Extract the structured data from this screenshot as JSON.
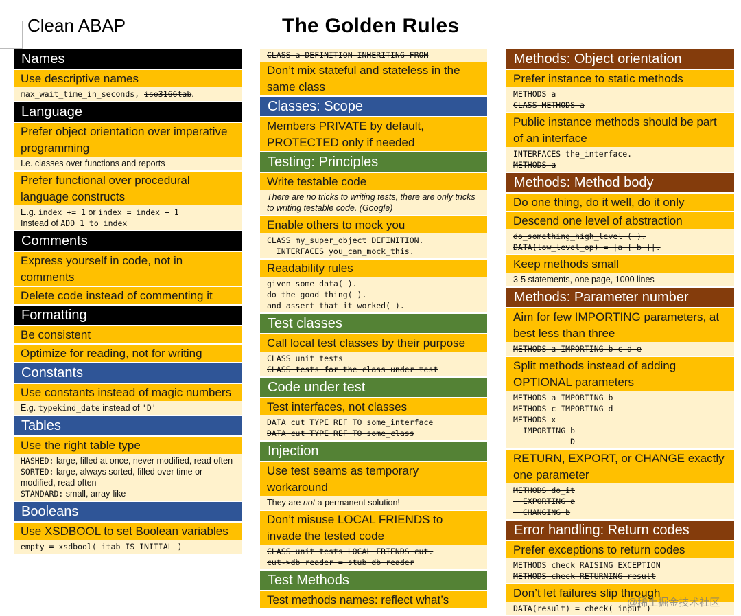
{
  "header": {
    "app_title": "Clean ABAP",
    "main_title": "The Golden Rules"
  },
  "col1": {
    "names": {
      "header": "Names",
      "r1_title": "Use descriptive names",
      "r1_code_a": "max_wait_time_in_seconds, ",
      "r1_code_b": "iso3166tab",
      "r1_code_c": "."
    },
    "language": {
      "header": "Language",
      "r1_title": "Prefer object orientation over imperative programming",
      "r1_detail": "I.e. classes over functions and reports",
      "r2_title": "Prefer functional over procedural language constructs",
      "r2_l1_a": "E.g. ",
      "r2_l1_b": "index += 1",
      "r2_l1_c": " or ",
      "r2_l1_d": "index = index + 1",
      "r2_l2_a": "Instead of ",
      "r2_l2_b": "ADD 1 to index"
    },
    "comments": {
      "header": "Comments",
      "r1_title": "Express yourself in code, not in comments",
      "r2_title": "Delete code instead of commenting it"
    },
    "formatting": {
      "header": "Formatting",
      "r1_title": "Be consistent",
      "r2_title": "Optimize for reading, not for writing"
    },
    "constants": {
      "header": "Constants",
      "r1_title": "Use constants instead of magic numbers",
      "r1_a": "E.g. ",
      "r1_b": "typekind_date",
      "r1_c": " instead of ",
      "r1_d": "'D'"
    },
    "tables": {
      "header": "Tables",
      "r1_title": "Use the right table type",
      "hashed_kw": "HASHED:",
      "hashed_text": " large, filled at once, never modified, read often",
      "sorted_kw": "SORTED:",
      "sorted_text": " large, always sorted, filled over time or modified, read often",
      "standard_kw": "STANDARD:",
      "standard_text": " small, array-like"
    },
    "booleans": {
      "header": "Booleans",
      "r1_title": "Use XSDBOOL to set Boolean variables",
      "r1_code": "empty = xsdbool( itab IS INITIAL )"
    }
  },
  "col2": {
    "top_code": "CLASS a DEFINITION INHERITING FROM",
    "top_rule": "Don’t mix stateful and stateless in the same class",
    "scope": {
      "header": "Classes: Scope",
      "r1_title": "Members PRIVATE by default, PROTECTED only if needed"
    },
    "testing": {
      "header": "Testing: Principles",
      "r1_title": "Write testable code",
      "r1_detail": "There are no tricks to writing tests, there are only tricks to writing testable code. (Google)",
      "r2_title": "Enable others to mock you",
      "r2_code_1": "CLASS my_super_object DEFINITION.",
      "r2_code_2": "  INTERFACES you_can_mock_this.",
      "r3_title": "Readability rules",
      "r3_code_1": "given_some_data( ).",
      "r3_code_2": "do_the_good_thing( ).",
      "r3_code_3": "and_assert_that_it_worked( )."
    },
    "test_classes": {
      "header": "Test classes",
      "r1_title": "Call local test classes by their purpose",
      "r1_code_1": "CLASS unit_tests",
      "r1_code_2": "CLASS tests_for_the_class_under_test"
    },
    "code_under_test": {
      "header": "Code under test",
      "r1_title": "Test interfaces, not classes",
      "r1_code_1": "DATA cut TYPE REF TO some_interface",
      "r1_code_2": "DATA cut TYPE REF TO some_class"
    },
    "injection": {
      "header": "Injection",
      "r1_title": "Use test seams as temporary workaround",
      "r1_a": "They are ",
      "r1_b": "not",
      "r1_c": " a permanent solution!",
      "r2_title": "Don’t misuse LOCAL FRIENDS to invade the tested code",
      "r2_code_1": "CLASS unit_tests LOCAL FRIENDS cut.",
      "r2_code_2": "cut->db_reader = stub_db_reader"
    },
    "test_methods": {
      "header": "Test Methods",
      "r1_title": "Test methods names: reflect what’s"
    }
  },
  "col3": {
    "oo": {
      "header": "Methods: Object orientation",
      "r1_title": "Prefer instance to static methods",
      "r1_code_1": "METHODS a",
      "r1_code_2": "CLASS-METHODS a",
      "r2_title": "Public instance methods should be part of an interface",
      "r2_code_1": "INTERFACES the_interface.",
      "r2_code_2": "METHODS a"
    },
    "body": {
      "header": "Methods: Method body",
      "r1_title": "Do one thing, do it well, do it only",
      "r2_title": "Descend one level of abstraction",
      "r2_code_1": "do_something_high_level ( ).",
      "r2_code_2": "DATA(low_level_op) = |a { b }|.",
      "r3_title": "Keep methods small",
      "r3_a": "3-5 statements, ",
      "r3_b": "one page, 1000 lines"
    },
    "params": {
      "header": "Methods: Parameter number",
      "r1_title": "Aim for few IMPORTING parameters, at best less than three",
      "r1_code": "METHODS a IMPORTING b c d e",
      "r2_title": "Split methods instead of adding OPTIONAL parameters",
      "r2_code_1": "METHODS a IMPORTING b",
      "r2_code_2": "METHODS c IMPORTING d",
      "r2_code_3": "METHODS x",
      "r2_code_4": "  IMPORTING b",
      "r2_code_5": "            D",
      "r3_title": "RETURN, EXPORT, or CHANGE exactly one parameter",
      "r3_code_1": "METHODS do_it",
      "r3_code_2": "  EXPORTING a",
      "r3_code_3": "  CHANGING b"
    },
    "errors": {
      "header": "Error handling: Return codes",
      "r1_title": "Prefer exceptions to return codes",
      "r1_code_1": "METHODS check RAISING EXCEPTION",
      "r1_code_2": "METHODS check RETURNING result",
      "r2_title": "Don’t let failures slip through",
      "r2_code_1": "DATA(result) = check( input )"
    }
  },
  "watermark": "@稀土掘金技术社区"
}
